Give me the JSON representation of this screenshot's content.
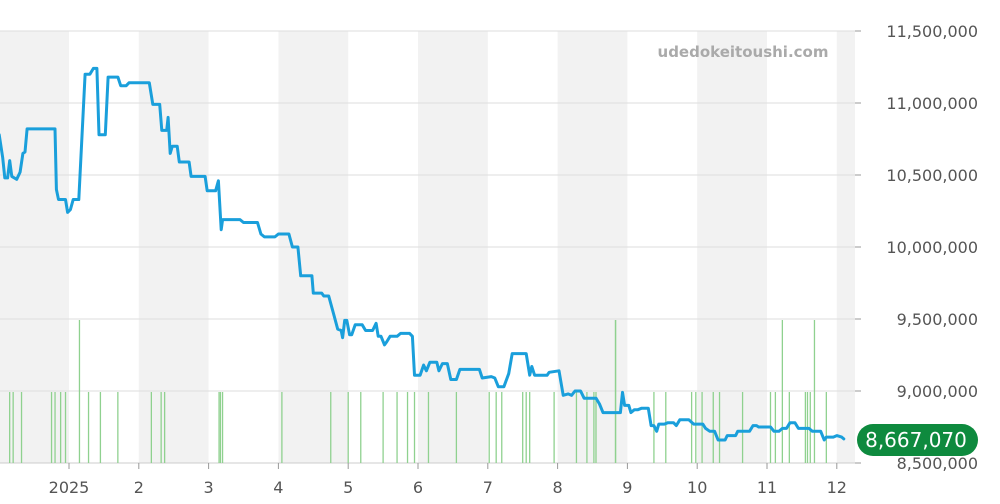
{
  "chart_data": {
    "type": "line",
    "watermark": "udedokeitoushi.com",
    "x_tick_labels": [
      "2025",
      "2",
      "3",
      "4",
      "5",
      "6",
      "7",
      "8",
      "9",
      "10",
      "11",
      "12"
    ],
    "y_tick_labels": [
      "11,500,000",
      "11,000,000",
      "10,500,000",
      "10,000,000",
      "9,500,000",
      "9,000,000",
      "8,500,000"
    ],
    "y_ticks": [
      11500000,
      11000000,
      10500000,
      10000000,
      9500000,
      9000000,
      8500000
    ],
    "ylim": [
      8500000,
      11500000
    ],
    "x_range_months": [
      0,
      11.5
    ],
    "last_value_label": "8,667,070",
    "colors": {
      "line": "#1a9fdb",
      "volume": "#8fd18f",
      "band": "#f2f2f2",
      "badge": "#0e8a3e",
      "grid": "#dddddd",
      "text": "#555555",
      "watermark": "#aaaaaa"
    },
    "series": [
      {
        "values": [
          [
            -1.0,
            10780000
          ],
          [
            -0.95,
            10620000
          ],
          [
            -0.92,
            10480000
          ],
          [
            -0.88,
            10480000
          ],
          [
            -0.85,
            10600000
          ],
          [
            -0.82,
            10490000
          ],
          [
            -0.75,
            10470000
          ],
          [
            -0.7,
            10520000
          ],
          [
            -0.66,
            10650000
          ],
          [
            -0.63,
            10660000
          ],
          [
            -0.6,
            10820000
          ],
          [
            -0.4,
            10820000
          ],
          [
            -0.2,
            10820000
          ],
          [
            -0.18,
            10400000
          ],
          [
            -0.15,
            10330000
          ],
          [
            -0.05,
            10330000
          ],
          [
            -0.02,
            10240000
          ],
          [
            0.02,
            10260000
          ],
          [
            0.06,
            10330000
          ],
          [
            0.14,
            10330000
          ],
          [
            0.23,
            11200000
          ],
          [
            0.3,
            11200000
          ],
          [
            0.35,
            11240000
          ],
          [
            0.4,
            11240000
          ],
          [
            0.43,
            10780000
          ],
          [
            0.52,
            10780000
          ],
          [
            0.56,
            11180000
          ],
          [
            0.7,
            11180000
          ],
          [
            0.74,
            11120000
          ],
          [
            0.82,
            11120000
          ],
          [
            0.86,
            11140000
          ],
          [
            1.15,
            11140000
          ],
          [
            1.2,
            10990000
          ],
          [
            1.3,
            10990000
          ],
          [
            1.33,
            10810000
          ],
          [
            1.4,
            10810000
          ],
          [
            1.42,
            10900000
          ],
          [
            1.45,
            10650000
          ],
          [
            1.48,
            10700000
          ],
          [
            1.55,
            10700000
          ],
          [
            1.58,
            10590000
          ],
          [
            1.72,
            10590000
          ],
          [
            1.75,
            10490000
          ],
          [
            1.95,
            10490000
          ],
          [
            1.98,
            10390000
          ],
          [
            2.1,
            10390000
          ],
          [
            2.14,
            10460000
          ],
          [
            2.18,
            10120000
          ],
          [
            2.2,
            10190000
          ],
          [
            2.45,
            10190000
          ],
          [
            2.5,
            10170000
          ],
          [
            2.7,
            10170000
          ],
          [
            2.75,
            10090000
          ],
          [
            2.8,
            10070000
          ],
          [
            2.95,
            10070000
          ],
          [
            3.0,
            10090000
          ],
          [
            3.15,
            10090000
          ],
          [
            3.2,
            10000000
          ],
          [
            3.28,
            10000000
          ],
          [
            3.32,
            9800000
          ],
          [
            3.48,
            9800000
          ],
          [
            3.5,
            9680000
          ],
          [
            3.62,
            9680000
          ],
          [
            3.65,
            9660000
          ],
          [
            3.72,
            9660000
          ],
          [
            3.8,
            9520000
          ],
          [
            3.85,
            9430000
          ],
          [
            3.9,
            9420000
          ],
          [
            3.92,
            9370000
          ],
          [
            3.95,
            9490000
          ],
          [
            3.98,
            9490000
          ],
          [
            4.02,
            9390000
          ],
          [
            4.05,
            9390000
          ],
          [
            4.1,
            9460000
          ],
          [
            4.2,
            9460000
          ],
          [
            4.25,
            9420000
          ],
          [
            4.35,
            9420000
          ],
          [
            4.4,
            9470000
          ],
          [
            4.43,
            9380000
          ],
          [
            4.47,
            9380000
          ],
          [
            4.52,
            9320000
          ],
          [
            4.55,
            9340000
          ],
          [
            4.6,
            9380000
          ],
          [
            4.7,
            9380000
          ],
          [
            4.75,
            9400000
          ],
          [
            4.88,
            9400000
          ],
          [
            4.92,
            9380000
          ],
          [
            4.95,
            9110000
          ],
          [
            5.03,
            9110000
          ],
          [
            5.08,
            9180000
          ],
          [
            5.12,
            9140000
          ],
          [
            5.17,
            9200000
          ],
          [
            5.27,
            9200000
          ],
          [
            5.3,
            9140000
          ],
          [
            5.35,
            9190000
          ],
          [
            5.42,
            9190000
          ],
          [
            5.47,
            9080000
          ],
          [
            5.55,
            9080000
          ],
          [
            5.6,
            9150000
          ],
          [
            5.88,
            9150000
          ],
          [
            5.92,
            9090000
          ],
          [
            6.05,
            9100000
          ],
          [
            6.1,
            9090000
          ],
          [
            6.15,
            9030000
          ],
          [
            6.23,
            9030000
          ],
          [
            6.3,
            9120000
          ],
          [
            6.35,
            9260000
          ],
          [
            6.55,
            9260000
          ],
          [
            6.6,
            9110000
          ],
          [
            6.63,
            9170000
          ],
          [
            6.67,
            9110000
          ],
          [
            6.85,
            9110000
          ],
          [
            6.88,
            9130000
          ],
          [
            7.02,
            9140000
          ],
          [
            7.08,
            8970000
          ],
          [
            7.15,
            8980000
          ],
          [
            7.2,
            8970000
          ],
          [
            7.25,
            9000000
          ],
          [
            7.33,
            9000000
          ],
          [
            7.38,
            8950000
          ],
          [
            7.5,
            8950000
          ],
          [
            7.55,
            8950000
          ],
          [
            7.6,
            8910000
          ],
          [
            7.65,
            8850000
          ],
          [
            7.9,
            8850000
          ],
          [
            7.93,
            8990000
          ],
          [
            7.96,
            8900000
          ],
          [
            8.02,
            8900000
          ],
          [
            8.05,
            8850000
          ],
          [
            8.1,
            8870000
          ],
          [
            8.15,
            8870000
          ],
          [
            8.2,
            8880000
          ],
          [
            8.3,
            8880000
          ],
          [
            8.34,
            8760000
          ],
          [
            8.38,
            8760000
          ],
          [
            8.42,
            8720000
          ],
          [
            8.45,
            8770000
          ],
          [
            8.53,
            8770000
          ],
          [
            8.58,
            8780000
          ],
          [
            8.66,
            8780000
          ],
          [
            8.7,
            8760000
          ],
          [
            8.75,
            8800000
          ],
          [
            8.88,
            8800000
          ],
          [
            8.95,
            8770000
          ],
          [
            9.08,
            8770000
          ],
          [
            9.12,
            8740000
          ],
          [
            9.18,
            8720000
          ],
          [
            9.25,
            8720000
          ],
          [
            9.3,
            8660000
          ],
          [
            9.4,
            8660000
          ],
          [
            9.43,
            8690000
          ],
          [
            9.55,
            8690000
          ],
          [
            9.58,
            8720000
          ],
          [
            9.68,
            8720000
          ],
          [
            9.75,
            8720000
          ],
          [
            9.8,
            8760000
          ],
          [
            9.85,
            8760000
          ],
          [
            9.88,
            8750000
          ],
          [
            10.05,
            8750000
          ],
          [
            10.1,
            8720000
          ],
          [
            10.17,
            8720000
          ],
          [
            10.22,
            8740000
          ],
          [
            10.28,
            8740000
          ],
          [
            10.33,
            8780000
          ],
          [
            10.4,
            8780000
          ],
          [
            10.45,
            8740000
          ],
          [
            10.6,
            8740000
          ],
          [
            10.65,
            8720000
          ],
          [
            10.77,
            8720000
          ],
          [
            10.82,
            8660000
          ],
          [
            10.85,
            8680000
          ],
          [
            10.95,
            8680000
          ],
          [
            11.0,
            8690000
          ],
          [
            11.07,
            8680000
          ],
          [
            11.1,
            8667070
          ]
        ]
      }
    ],
    "volume_bars_months": [
      -1.0,
      -0.85,
      -0.8,
      -0.68,
      -0.25,
      -0.2,
      -0.12,
      -0.05,
      0.15,
      0.28,
      0.45,
      0.7,
      1.18,
      1.32,
      1.37,
      2.15,
      2.17,
      2.2,
      3.05,
      3.75,
      4.0,
      4.18,
      4.5,
      4.7,
      4.85,
      4.95,
      5.15,
      5.55,
      6.02,
      6.12,
      6.2,
      6.5,
      6.55,
      6.6,
      6.95,
      7.27,
      7.42,
      7.52,
      7.55,
      7.83,
      7.83,
      8.38,
      8.55,
      8.92,
      8.98,
      9.07,
      9.23,
      9.32,
      9.65,
      10.05,
      10.12,
      10.22,
      10.32,
      10.55,
      10.58,
      10.62,
      10.68,
      10.85
    ],
    "tall_volume_bars_months": [
      0.15,
      7.83,
      10.22,
      10.68
    ]
  }
}
